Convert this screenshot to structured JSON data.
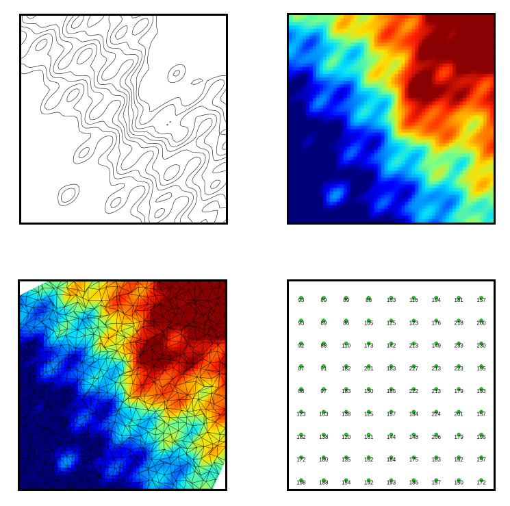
{
  "panels": {
    "contour_map": {
      "kind": "topographic contour lines"
    },
    "elevation_heatmap": {
      "kind": "interpolated elevation raster",
      "colormap": [
        "#00007a",
        "#0000ff",
        "#0080ff",
        "#00e0ff",
        "#7fff80",
        "#ffe000",
        "#ff8000",
        "#ff2000",
        "#8b0000"
      ]
    },
    "tin_overlay": {
      "kind": "triangulated irregular network over elevation raster"
    },
    "sample_grid": {
      "marker_color": "#22cc22",
      "rows": [
        [
          "93",
          "89",
          "89",
          "88",
          "103",
          "116",
          "194",
          "181",
          "157"
        ],
        [
          "93",
          "89",
          "86",
          "105",
          "125",
          "123",
          "176",
          "218",
          "200"
        ],
        [
          "92",
          "88",
          "110",
          "173",
          "142",
          "213",
          "149",
          "233",
          "230"
        ],
        [
          "87",
          "91",
          "182",
          "201",
          "183",
          "227",
          "213",
          "223",
          "195"
        ],
        [
          "88",
          "97",
          "183",
          "150",
          "185",
          "222",
          "213",
          "179",
          "193"
        ],
        [
          "123",
          "103",
          "138",
          "125",
          "157",
          "184",
          "224",
          "201",
          "157"
        ],
        [
          "182",
          "138",
          "120",
          "161",
          "144",
          "148",
          "206",
          "179",
          "195"
        ],
        [
          "172",
          "180",
          "135",
          "162",
          "184",
          "175",
          "183",
          "162",
          "197"
        ],
        [
          "198",
          "188",
          "154",
          "192",
          "193",
          "186",
          "157",
          "150",
          "172"
        ]
      ]
    }
  }
}
